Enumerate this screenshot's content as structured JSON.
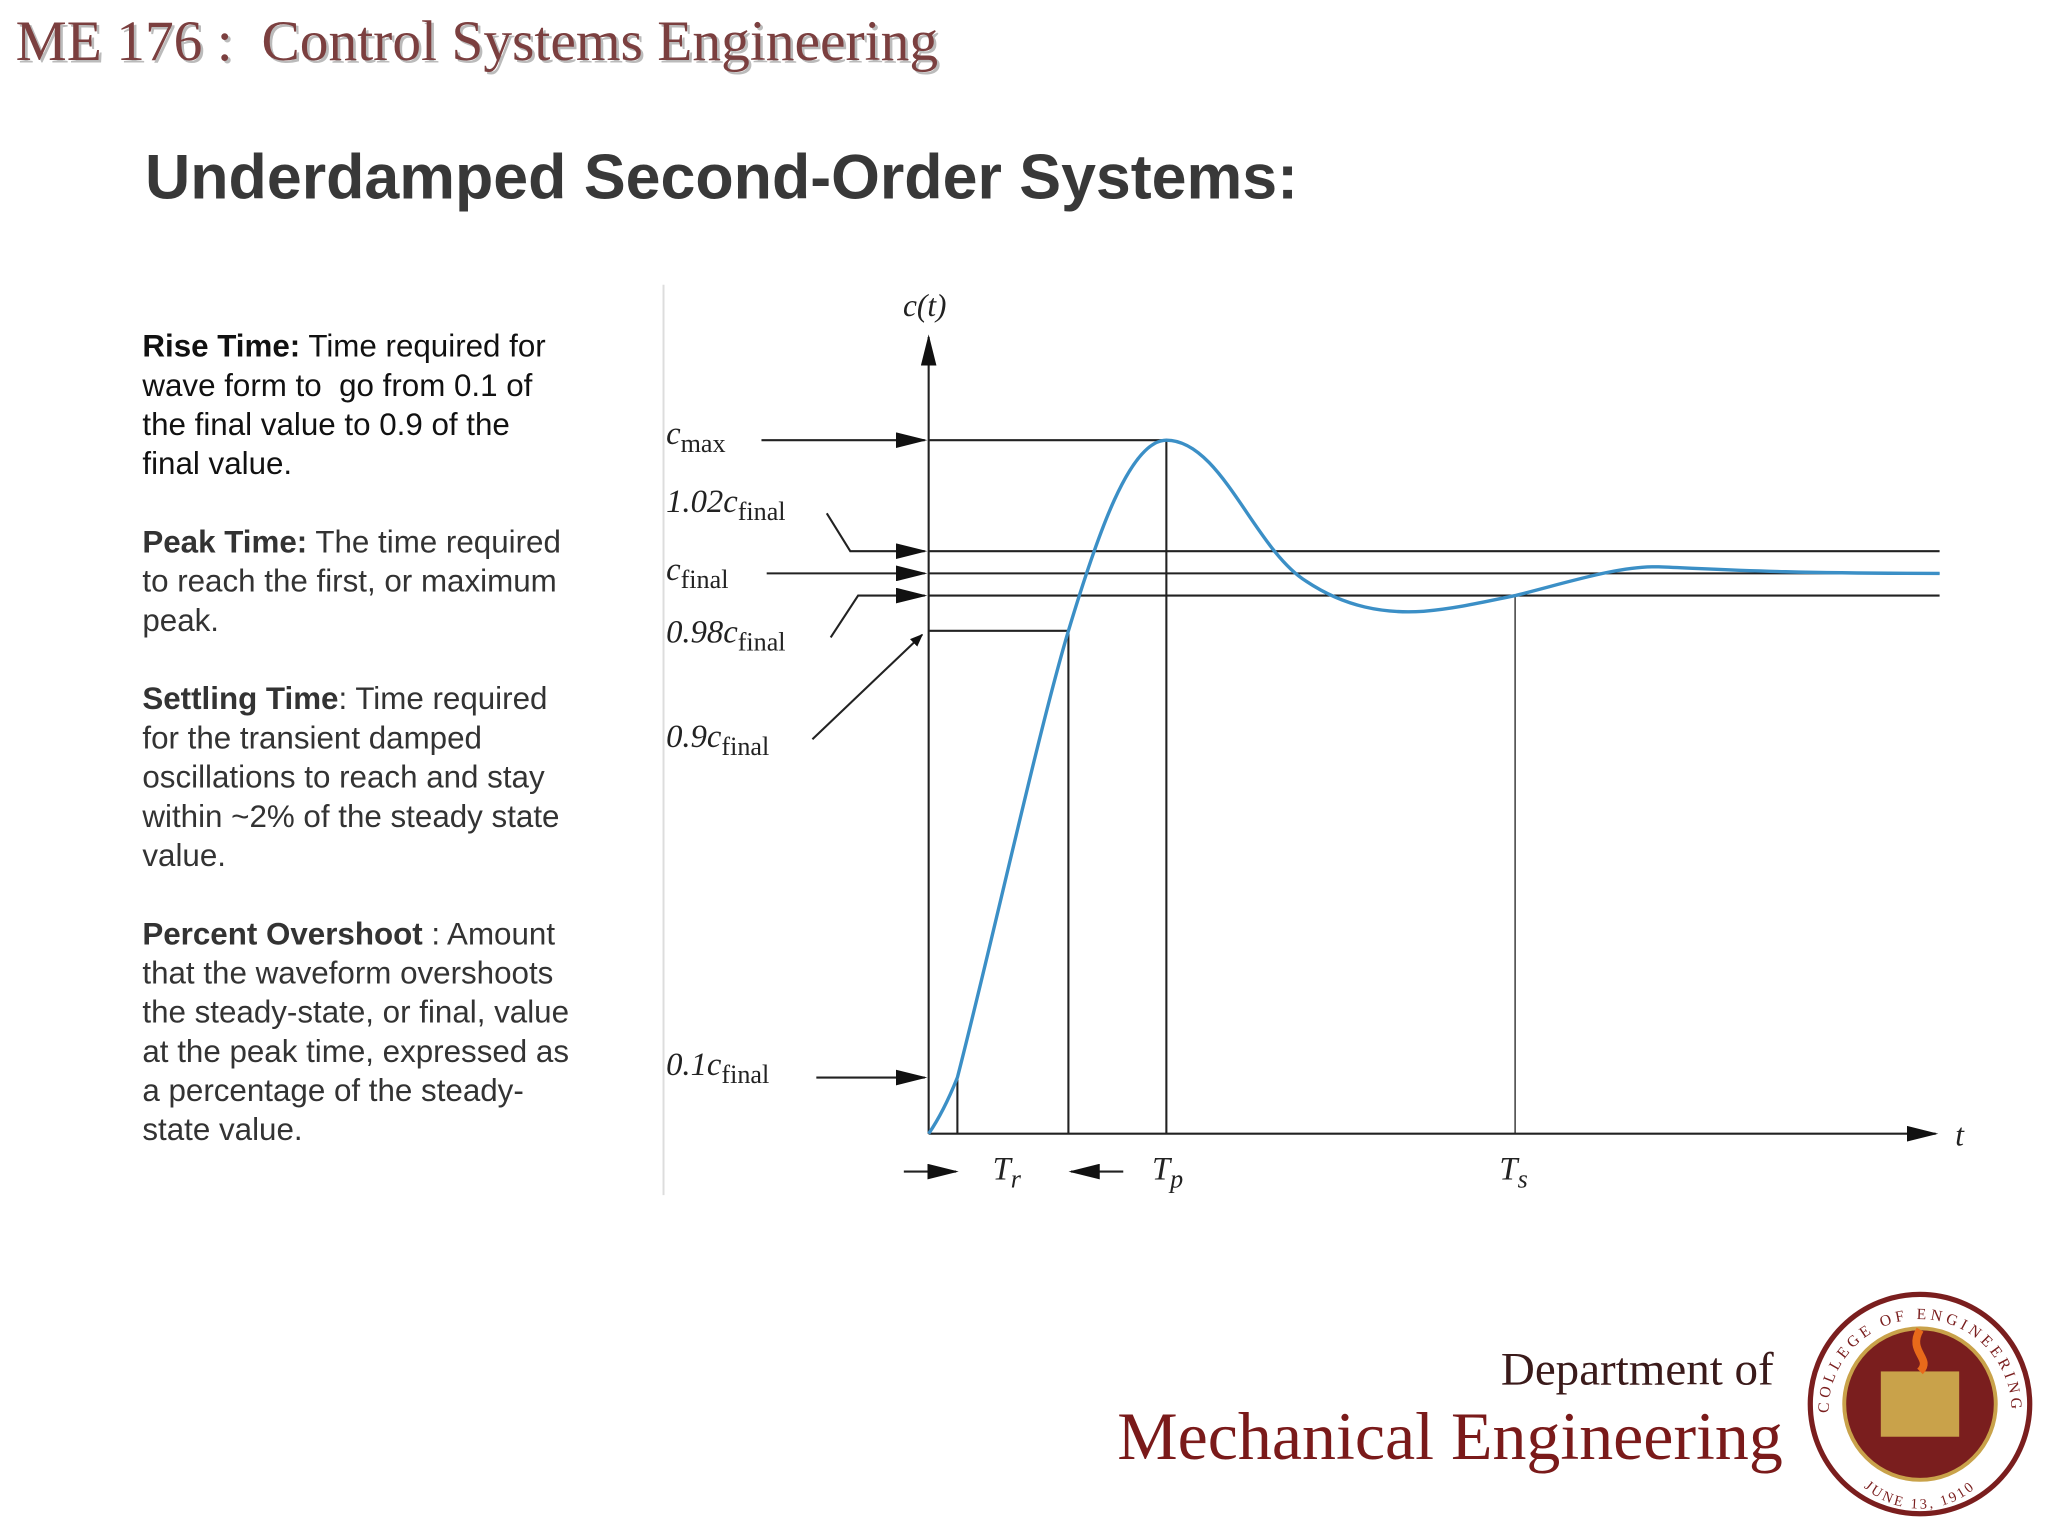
{
  "header": {
    "course": "ME 176 :  Control Systems Engineering"
  },
  "title": "Underdamped Second-Order Systems:",
  "definitions": [
    {
      "term": "Rise Time:",
      "lines": [
        " Time required for",
        "wave form to  go from 0.1 of",
        "the final value to 0.9 of the",
        "final value."
      ]
    },
    {
      "term": "Peak Time:",
      "lines": [
        " The time required",
        "to reach the first, or maximum",
        "peak."
      ]
    },
    {
      "term": "Settling Time",
      "lines": [
        ": Time required",
        "for the transient damped",
        "oscillations to reach and stay",
        "within ~2% of the steady state",
        "value."
      ]
    },
    {
      "term": "Percent Overshoot",
      "lines": [
        " : Amount",
        "that the waveform overshoots",
        "the steady-state, or final, value",
        "at the peak time, expressed as",
        "a percentage of the steady-",
        "state value."
      ]
    }
  ],
  "diagram": {
    "y_axis_label": "c(t)",
    "x_axis_label": "t",
    "levels": [
      {
        "main": "c",
        "sub": "max"
      },
      {
        "main": "1.02c",
        "sub": "final"
      },
      {
        "main": "c",
        "sub": "final"
      },
      {
        "main": "0.98c",
        "sub": "final"
      },
      {
        "main": "0.9c",
        "sub": "final"
      },
      {
        "main": "0.1c",
        "sub": "final"
      }
    ],
    "times": [
      {
        "main": "T",
        "sub": "r"
      },
      {
        "main": "T",
        "sub": "p"
      },
      {
        "main": "T",
        "sub": "s"
      }
    ]
  },
  "footer": {
    "line1": "Department of",
    "line2": "Mechanical Engineering",
    "seal_top": "COLLEGE OF ENGINEERING",
    "seal_bottom": "JUNE 13, 1910"
  }
}
